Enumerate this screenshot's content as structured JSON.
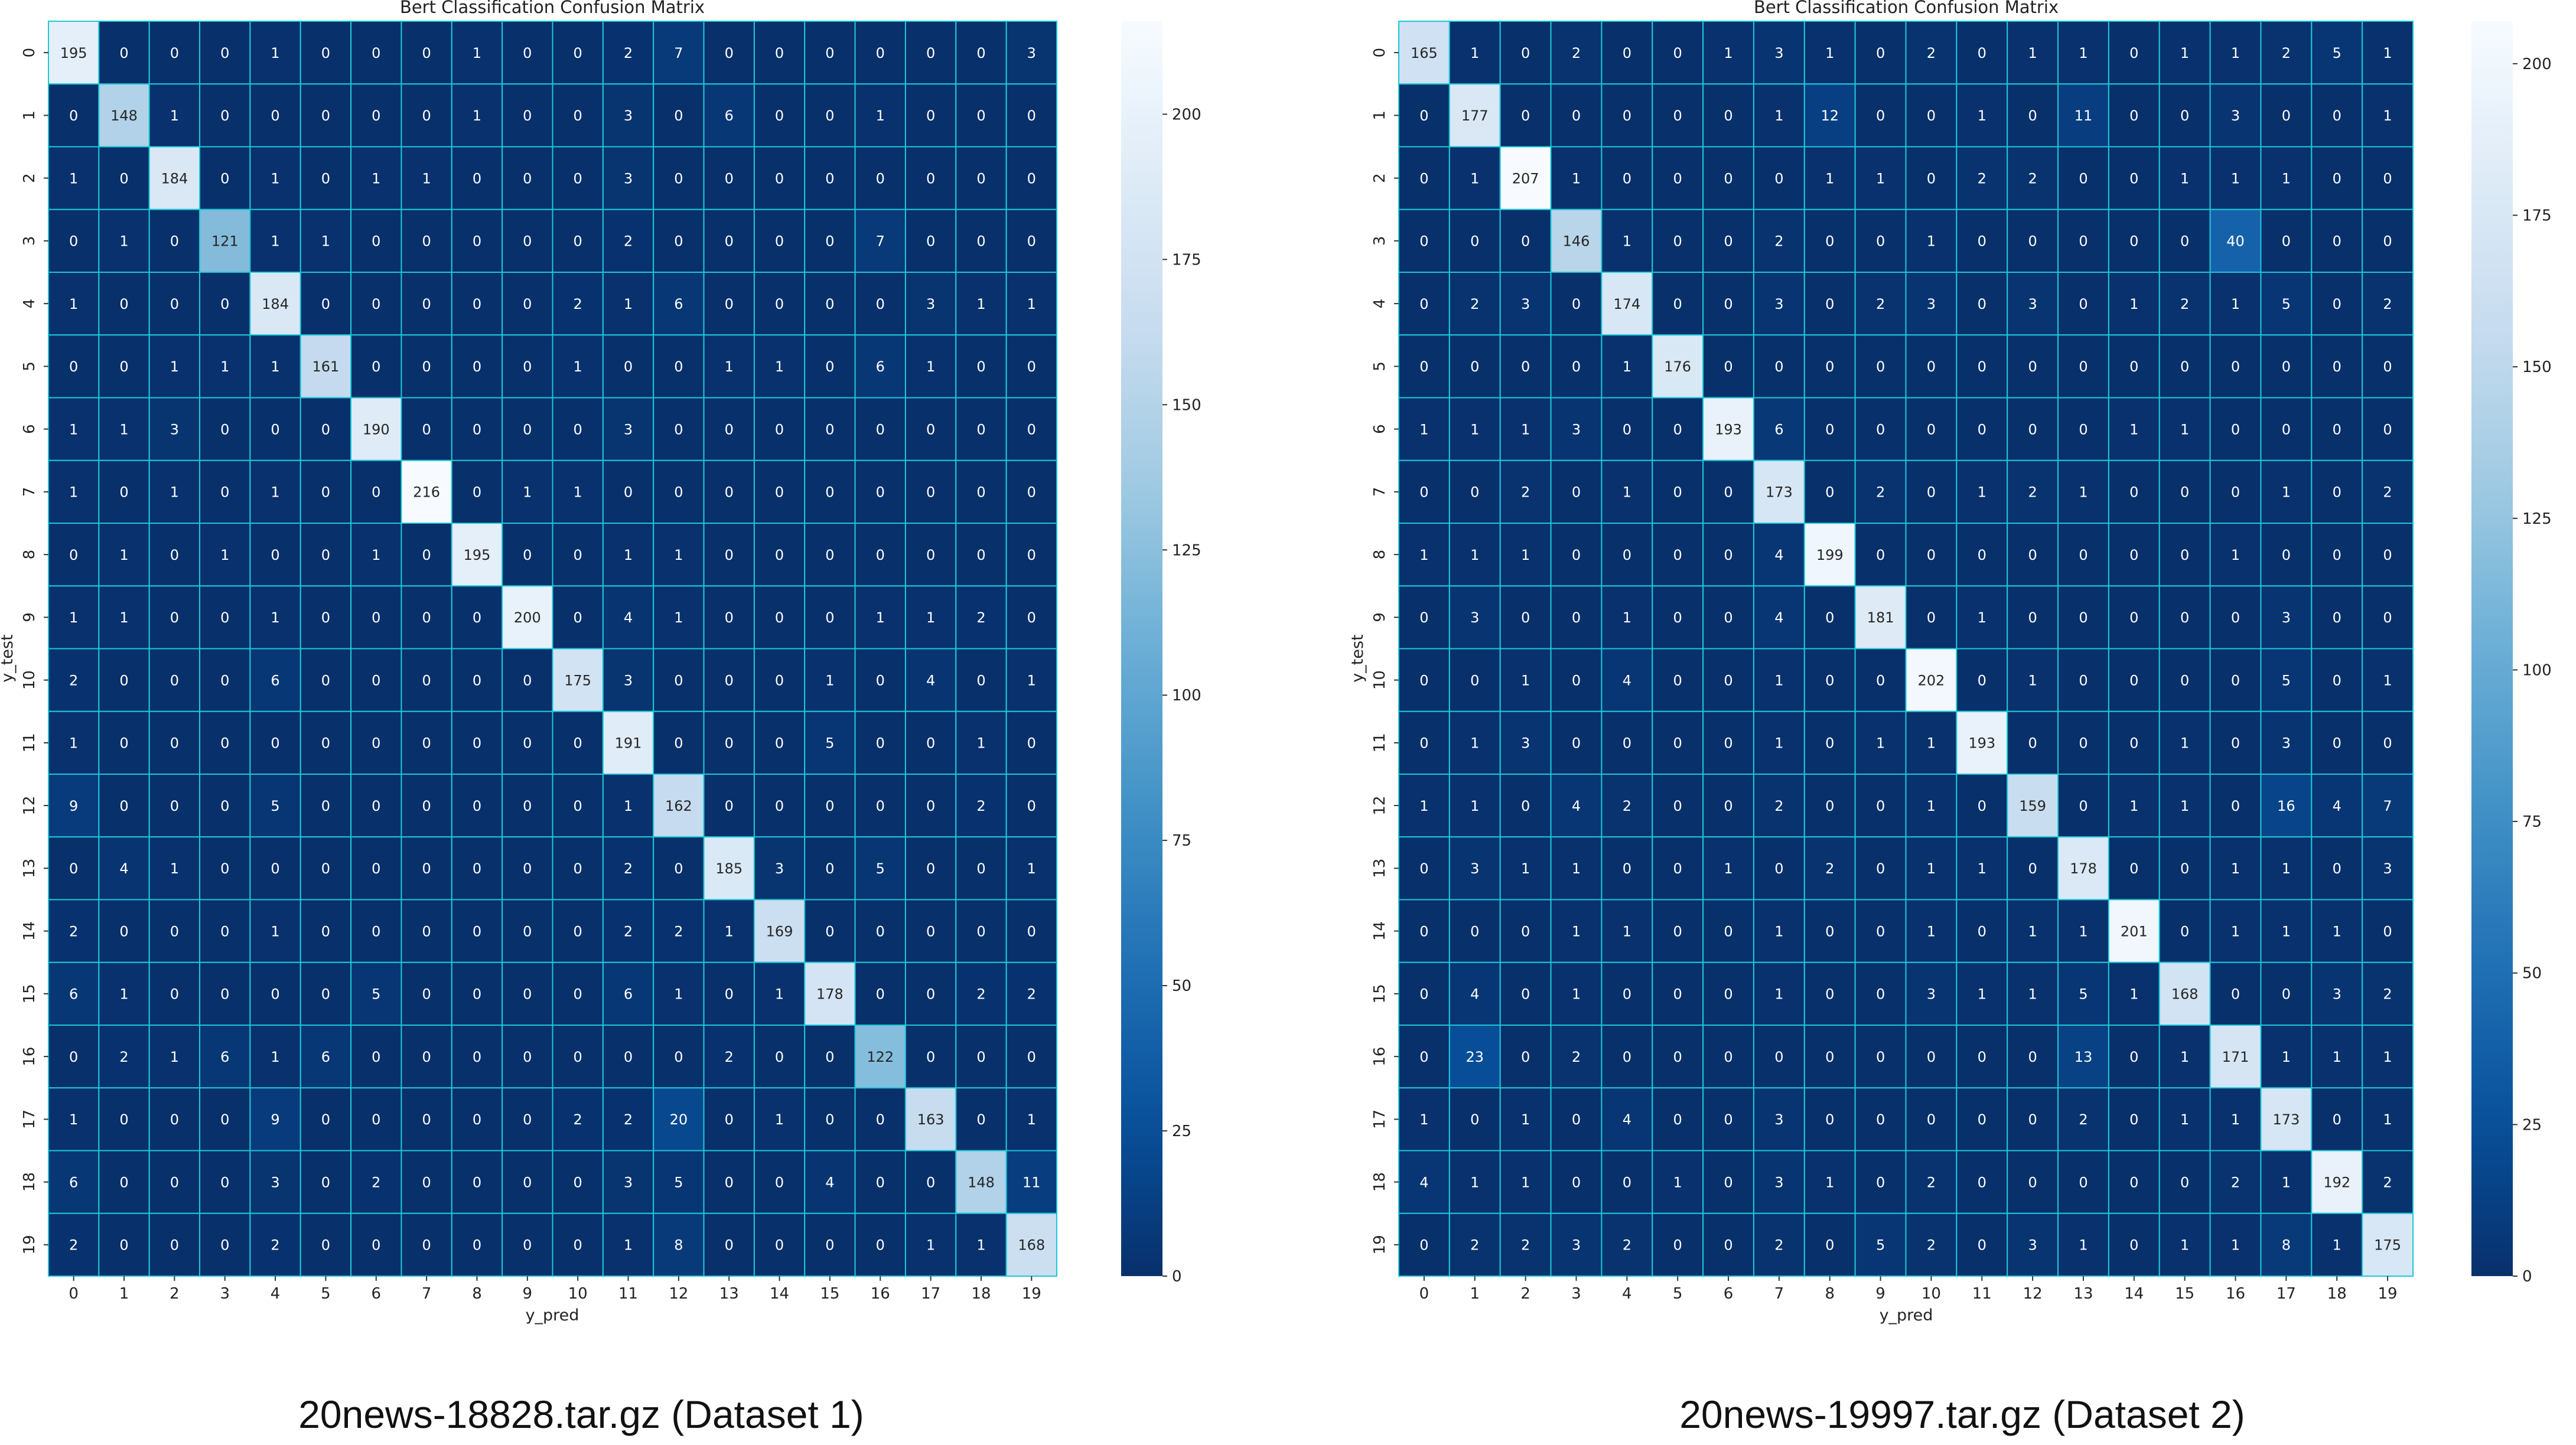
{
  "figures": [
    {
      "caption": "20news-18828.tar.gz (Dataset 1)",
      "chart_data": {
        "type": "heatmap",
        "title": "Bert Classification Confusion Matrix",
        "xlabel": "y_pred",
        "ylabel": "y_test",
        "x_labels": [
          "0",
          "1",
          "2",
          "3",
          "4",
          "5",
          "6",
          "7",
          "8",
          "9",
          "10",
          "11",
          "12",
          "13",
          "14",
          "15",
          "16",
          "17",
          "18",
          "19"
        ],
        "y_labels": [
          "0",
          "1",
          "2",
          "3",
          "4",
          "5",
          "6",
          "7",
          "8",
          "9",
          "10",
          "11",
          "12",
          "13",
          "14",
          "15",
          "16",
          "17",
          "18",
          "19"
        ],
        "matrix": [
          [
            195,
            0,
            0,
            0,
            1,
            0,
            0,
            0,
            1,
            0,
            0,
            2,
            7,
            0,
            0,
            0,
            0,
            0,
            0,
            3
          ],
          [
            0,
            148,
            1,
            0,
            0,
            0,
            0,
            0,
            1,
            0,
            0,
            3,
            0,
            6,
            0,
            0,
            1,
            0,
            0,
            0
          ],
          [
            1,
            0,
            184,
            0,
            1,
            0,
            1,
            1,
            0,
            0,
            0,
            3,
            0,
            0,
            0,
            0,
            0,
            0,
            0,
            0
          ],
          [
            0,
            1,
            0,
            121,
            1,
            1,
            0,
            0,
            0,
            0,
            0,
            2,
            0,
            0,
            0,
            0,
            7,
            0,
            0,
            0
          ],
          [
            1,
            0,
            0,
            0,
            184,
            0,
            0,
            0,
            0,
            0,
            2,
            1,
            6,
            0,
            0,
            0,
            0,
            3,
            1,
            1
          ],
          [
            0,
            0,
            1,
            1,
            1,
            161,
            0,
            0,
            0,
            0,
            1,
            0,
            0,
            1,
            1,
            0,
            6,
            1,
            0,
            0
          ],
          [
            1,
            1,
            3,
            0,
            0,
            0,
            190,
            0,
            0,
            0,
            0,
            3,
            0,
            0,
            0,
            0,
            0,
            0,
            0,
            0
          ],
          [
            1,
            0,
            1,
            0,
            1,
            0,
            0,
            216,
            0,
            1,
            1,
            0,
            0,
            0,
            0,
            0,
            0,
            0,
            0,
            0
          ],
          [
            0,
            1,
            0,
            1,
            0,
            0,
            1,
            0,
            195,
            0,
            0,
            1,
            1,
            0,
            0,
            0,
            0,
            0,
            0,
            0
          ],
          [
            1,
            1,
            0,
            0,
            1,
            0,
            0,
            0,
            0,
            200,
            0,
            4,
            1,
            0,
            0,
            0,
            1,
            1,
            2,
            0
          ],
          [
            2,
            0,
            0,
            0,
            6,
            0,
            0,
            0,
            0,
            0,
            175,
            3,
            0,
            0,
            0,
            1,
            0,
            4,
            0,
            1
          ],
          [
            1,
            0,
            0,
            0,
            0,
            0,
            0,
            0,
            0,
            0,
            0,
            191,
            0,
            0,
            0,
            5,
            0,
            0,
            1,
            0
          ],
          [
            9,
            0,
            0,
            0,
            5,
            0,
            0,
            0,
            0,
            0,
            0,
            1,
            162,
            0,
            0,
            0,
            0,
            0,
            2,
            0
          ],
          [
            0,
            4,
            1,
            0,
            0,
            0,
            0,
            0,
            0,
            0,
            0,
            2,
            0,
            185,
            3,
            0,
            5,
            0,
            0,
            1
          ],
          [
            2,
            0,
            0,
            0,
            1,
            0,
            0,
            0,
            0,
            0,
            0,
            2,
            2,
            1,
            169,
            0,
            0,
            0,
            0,
            0
          ],
          [
            6,
            1,
            0,
            0,
            0,
            0,
            5,
            0,
            0,
            0,
            0,
            6,
            1,
            0,
            1,
            178,
            0,
            0,
            2,
            2
          ],
          [
            0,
            2,
            1,
            6,
            1,
            6,
            0,
            0,
            0,
            0,
            0,
            0,
            0,
            2,
            0,
            0,
            122,
            0,
            0,
            0
          ],
          [
            1,
            0,
            0,
            0,
            9,
            0,
            0,
            0,
            0,
            0,
            2,
            2,
            20,
            0,
            1,
            0,
            0,
            163,
            0,
            1
          ],
          [
            6,
            0,
            0,
            0,
            3,
            0,
            2,
            0,
            0,
            0,
            0,
            3,
            5,
            0,
            0,
            4,
            0,
            0,
            148,
            11
          ],
          [
            2,
            0,
            0,
            0,
            2,
            0,
            0,
            0,
            0,
            0,
            0,
            1,
            8,
            0,
            0,
            0,
            0,
            1,
            1,
            168
          ]
        ],
        "colorbar": {
          "min": 0,
          "max": 216,
          "ticks": [
            0,
            25,
            50,
            75,
            100,
            125,
            150,
            175,
            200
          ],
          "colormap": "Blues_r"
        },
        "grid_color": "#1ec8d8"
      }
    },
    {
      "caption": "20news-19997.tar.gz (Dataset 2)",
      "chart_data": {
        "type": "heatmap",
        "title": "Bert Classification Confusion Matrix",
        "xlabel": "y_pred",
        "ylabel": "y_test",
        "x_labels": [
          "0",
          "1",
          "2",
          "3",
          "4",
          "5",
          "6",
          "7",
          "8",
          "9",
          "10",
          "11",
          "12",
          "13",
          "14",
          "15",
          "16",
          "17",
          "18",
          "19"
        ],
        "y_labels": [
          "0",
          "1",
          "2",
          "3",
          "4",
          "5",
          "6",
          "7",
          "8",
          "9",
          "10",
          "11",
          "12",
          "13",
          "14",
          "15",
          "16",
          "17",
          "18",
          "19"
        ],
        "matrix": [
          [
            165,
            1,
            0,
            2,
            0,
            0,
            1,
            3,
            1,
            0,
            2,
            0,
            1,
            1,
            0,
            1,
            1,
            2,
            5,
            1
          ],
          [
            0,
            177,
            0,
            0,
            0,
            0,
            0,
            1,
            12,
            0,
            0,
            1,
            0,
            11,
            0,
            0,
            3,
            0,
            0,
            1
          ],
          [
            0,
            1,
            207,
            1,
            0,
            0,
            0,
            0,
            1,
            1,
            0,
            2,
            2,
            0,
            0,
            1,
            1,
            1,
            0,
            0
          ],
          [
            0,
            0,
            0,
            146,
            1,
            0,
            0,
            2,
            0,
            0,
            1,
            0,
            0,
            0,
            0,
            0,
            40,
            0,
            0,
            0
          ],
          [
            0,
            2,
            3,
            0,
            174,
            0,
            0,
            3,
            0,
            2,
            3,
            0,
            3,
            0,
            1,
            2,
            1,
            5,
            0,
            2
          ],
          [
            0,
            0,
            0,
            0,
            1,
            176,
            0,
            0,
            0,
            0,
            0,
            0,
            0,
            0,
            0,
            0,
            0,
            0,
            0,
            0
          ],
          [
            1,
            1,
            1,
            3,
            0,
            0,
            193,
            6,
            0,
            0,
            0,
            0,
            0,
            0,
            1,
            1,
            0,
            0,
            0,
            0
          ],
          [
            0,
            0,
            2,
            0,
            1,
            0,
            0,
            173,
            0,
            2,
            0,
            1,
            2,
            1,
            0,
            0,
            0,
            1,
            0,
            2
          ],
          [
            1,
            1,
            1,
            0,
            0,
            0,
            0,
            4,
            199,
            0,
            0,
            0,
            0,
            0,
            0,
            0,
            1,
            0,
            0,
            0
          ],
          [
            0,
            3,
            0,
            0,
            1,
            0,
            0,
            4,
            0,
            181,
            0,
            1,
            0,
            0,
            0,
            0,
            0,
            3,
            0,
            0
          ],
          [
            0,
            0,
            1,
            0,
            4,
            0,
            0,
            1,
            0,
            0,
            202,
            0,
            1,
            0,
            0,
            0,
            0,
            5,
            0,
            1
          ],
          [
            0,
            1,
            3,
            0,
            0,
            0,
            0,
            1,
            0,
            1,
            1,
            193,
            0,
            0,
            0,
            1,
            0,
            3,
            0,
            0
          ],
          [
            1,
            1,
            0,
            4,
            2,
            0,
            0,
            2,
            0,
            0,
            1,
            0,
            159,
            0,
            1,
            1,
            0,
            16,
            4,
            7
          ],
          [
            0,
            3,
            1,
            1,
            0,
            0,
            1,
            0,
            2,
            0,
            1,
            1,
            0,
            178,
            0,
            0,
            1,
            1,
            0,
            3
          ],
          [
            0,
            0,
            0,
            1,
            1,
            0,
            0,
            1,
            0,
            0,
            1,
            0,
            1,
            1,
            201,
            0,
            1,
            1,
            1,
            0
          ],
          [
            0,
            4,
            0,
            1,
            0,
            0,
            0,
            1,
            0,
            0,
            3,
            1,
            1,
            5,
            1,
            168,
            0,
            0,
            3,
            2
          ],
          [
            0,
            23,
            0,
            2,
            0,
            0,
            0,
            0,
            0,
            0,
            0,
            0,
            0,
            13,
            0,
            1,
            171,
            1,
            1,
            1
          ],
          [
            1,
            0,
            1,
            0,
            4,
            0,
            0,
            3,
            0,
            0,
            0,
            0,
            0,
            2,
            0,
            1,
            1,
            173,
            0,
            1
          ],
          [
            4,
            1,
            1,
            0,
            0,
            1,
            0,
            3,
            1,
            0,
            2,
            0,
            0,
            0,
            0,
            0,
            2,
            1,
            192,
            2
          ],
          [
            0,
            2,
            2,
            3,
            2,
            0,
            0,
            2,
            0,
            5,
            2,
            0,
            3,
            1,
            0,
            1,
            1,
            8,
            1,
            175
          ]
        ],
        "colorbar": {
          "min": 0,
          "max": 207,
          "ticks": [
            0,
            25,
            50,
            75,
            100,
            125,
            150,
            175,
            200
          ],
          "colormap": "Blues_r"
        },
        "grid_color": "#1ec8d8"
      }
    }
  ]
}
